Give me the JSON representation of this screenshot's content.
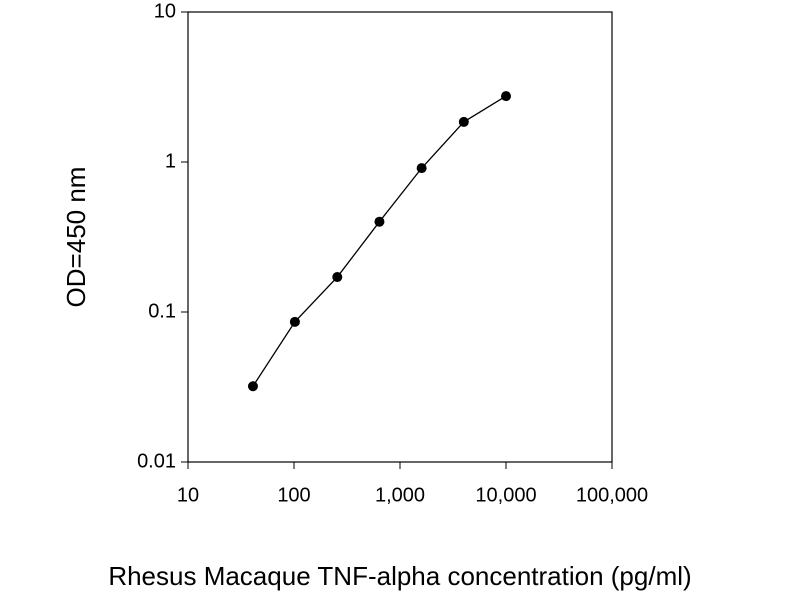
{
  "chart_data": {
    "type": "line",
    "x_label": "Rhesus Macaque TNF-alpha concentration (pg/ml)",
    "y_label": "OD=450 nm",
    "x_log": true,
    "y_log": true,
    "xlim": [
      10,
      100000
    ],
    "ylim": [
      0.01,
      10
    ],
    "xticks": [
      10,
      100,
      {
        "value": 1000,
        "label": "1,000"
      },
      {
        "value": 10000,
        "label": "10,000"
      },
      {
        "value": 100000,
        "label": "100,000"
      }
    ],
    "yticks": [
      0.01,
      0.1,
      1,
      10
    ],
    "color": "#000000",
    "x": [
      41,
      102,
      256,
      640,
      1600,
      4000,
      10000
    ],
    "values": [
      0.032,
      0.086,
      0.171,
      0.4,
      0.91,
      1.85,
      2.75
    ]
  }
}
